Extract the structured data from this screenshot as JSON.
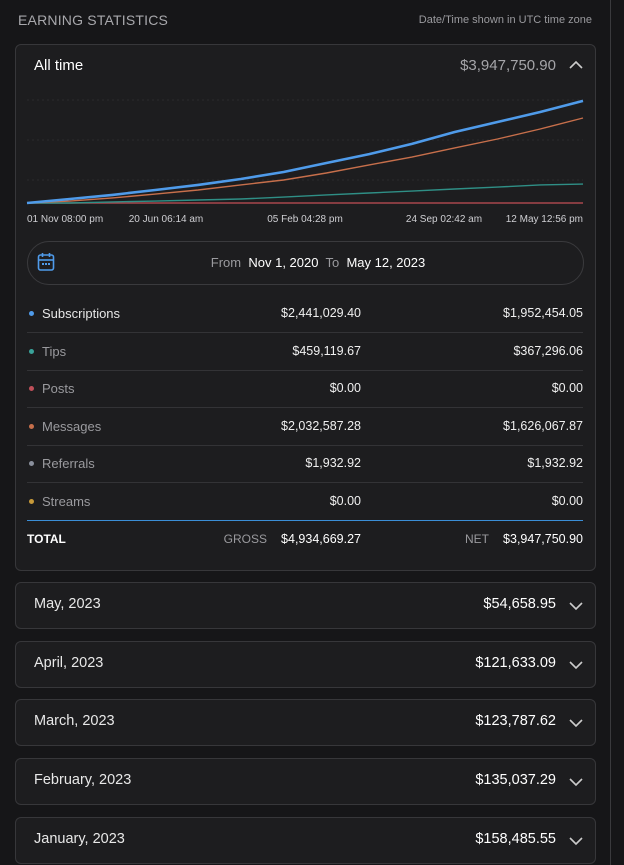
{
  "header": {
    "title": "EARNING STATISTICS",
    "note": "Date/Time shown in UTC time zone"
  },
  "all_time": {
    "label": "All time",
    "total": "$3,947,750.90"
  },
  "chart": {
    "type": "line",
    "x_labels": [
      "01 Nov 08:00 pm",
      "20 Jun 06:14 am",
      "05 Feb 04:28 pm",
      "24 Sep 02:42 am",
      "12 May 12:56 pm"
    ],
    "ylim": [
      0,
      4000000
    ],
    "series": [
      {
        "color": "#4f9bea",
        "values": [
          0,
          150000,
          300000,
          480000,
          670000,
          890000,
          1150000,
          1480000,
          1810000,
          2190000,
          2630000,
          3000000,
          3370000,
          3780000
        ]
      },
      {
        "color": "#c76f4b",
        "values": [
          0,
          70000,
          190000,
          330000,
          480000,
          670000,
          850000,
          1110000,
          1410000,
          1700000,
          2040000,
          2370000,
          2740000,
          3150000
        ]
      },
      {
        "color": "#2f8f86",
        "values": [
          0,
          0,
          40000,
          70000,
          110000,
          150000,
          220000,
          300000,
          370000,
          440000,
          520000,
          590000,
          670000,
          700000
        ]
      },
      {
        "color": "#a8474d",
        "values": [
          0,
          0,
          0,
          0,
          0,
          0,
          0,
          0,
          0,
          0,
          0,
          0,
          0,
          0
        ]
      }
    ]
  },
  "date_range": {
    "from_label": "From",
    "from": "Nov 1, 2020",
    "to_label": "To",
    "to": "May 12, 2023"
  },
  "table": {
    "rows": [
      {
        "name": "Subscriptions",
        "color": "#4f9bea",
        "gross": "$2,441,029.40",
        "net": "$1,952,454.05"
      },
      {
        "name": "Tips",
        "color": "#3aa39a",
        "gross": "$459,119.67",
        "net": "$367,296.06"
      },
      {
        "name": "Posts",
        "color": "#c0505a",
        "gross": "$0.00",
        "net": "$0.00"
      },
      {
        "name": "Messages",
        "color": "#c76f4b",
        "gross": "$2,032,587.28",
        "net": "$1,626,067.87"
      },
      {
        "name": "Referrals",
        "color": "#8a8f9c",
        "gross": "$1,932.92",
        "net": "$1,932.92"
      },
      {
        "name": "Streams",
        "color": "#c89a3a",
        "gross": "$0.00",
        "net": "$0.00"
      }
    ],
    "total": {
      "label": "TOTAL",
      "gross_label": "GROSS",
      "gross": "$4,934,669.27",
      "net_label": "NET",
      "net": "$3,947,750.90"
    }
  },
  "months": [
    {
      "label": "May, 2023",
      "amount": "$54,658.95"
    },
    {
      "label": "April, 2023",
      "amount": "$121,633.09"
    },
    {
      "label": "March, 2023",
      "amount": "$123,787.62"
    },
    {
      "label": "February, 2023",
      "amount": "$135,037.29"
    },
    {
      "label": "January, 2023",
      "amount": "$158,485.55"
    }
  ]
}
